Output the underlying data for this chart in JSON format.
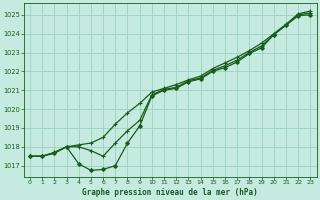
{
  "title": "Graphe pression niveau de la mer (hPa)",
  "bg_color": "#c5eae0",
  "grid_color": "#a0d4c8",
  "line_color": "#1a5c1a",
  "xlim": [
    -0.5,
    23.5
  ],
  "ylim": [
    1016.4,
    1025.6
  ],
  "yticks": [
    1017,
    1018,
    1019,
    1020,
    1021,
    1022,
    1023,
    1024,
    1025
  ],
  "xticks": [
    0,
    1,
    2,
    3,
    4,
    5,
    6,
    7,
    8,
    9,
    10,
    11,
    12,
    13,
    14,
    15,
    16,
    17,
    18,
    19,
    20,
    21,
    22,
    23
  ],
  "series_upper": [
    1017.5,
    1017.5,
    1017.7,
    1018.0,
    1018.1,
    1018.2,
    1018.5,
    1019.2,
    1019.8,
    1020.3,
    1020.9,
    1021.1,
    1021.3,
    1021.55,
    1021.75,
    1022.15,
    1022.45,
    1022.75,
    1023.1,
    1023.5,
    1024.0,
    1024.5,
    1025.05,
    1025.2
  ],
  "series_middle": [
    1017.5,
    1017.5,
    1017.7,
    1018.0,
    1018.0,
    1017.8,
    1017.5,
    1018.2,
    1018.85,
    1019.4,
    1020.75,
    1021.05,
    1021.15,
    1021.5,
    1021.65,
    1022.05,
    1022.3,
    1022.6,
    1023.0,
    1023.35,
    1023.95,
    1024.45,
    1025.0,
    1025.1
  ],
  "series_lower": [
    1017.5,
    1017.5,
    1017.65,
    1018.0,
    1017.1,
    1016.75,
    1016.8,
    1017.0,
    1018.2,
    1019.1,
    1020.7,
    1021.0,
    1021.1,
    1021.45,
    1021.6,
    1022.0,
    1022.2,
    1022.5,
    1022.95,
    1023.25,
    1023.95,
    1024.45,
    1024.95,
    1025.0
  ]
}
